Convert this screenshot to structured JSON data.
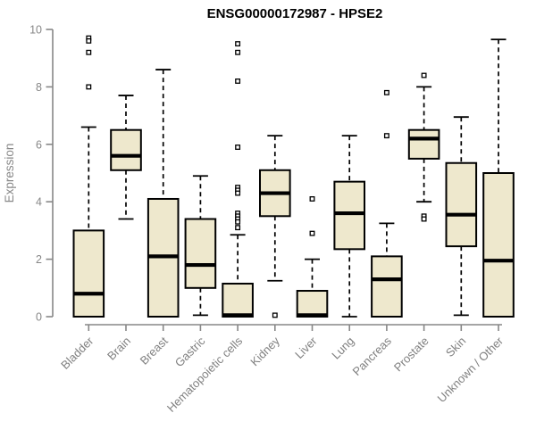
{
  "title": "ENSG00000172987 - HPSE2",
  "colors": {
    "background": "#FFFFFF",
    "box_fill": "#EEE8CD",
    "box_stroke": "#000000",
    "median": "#000000",
    "whisker": "#000000",
    "outlier_stroke": "#000000",
    "outlier_fill": "#FFFFFF",
    "axis": "#878787",
    "tick_label": "#878787",
    "category_label": "#808080",
    "title": "#000000"
  },
  "chart_data": {
    "type": "boxplot",
    "title": "ENSG00000172987 - HPSE2",
    "xlabel": "",
    "ylabel": "Expression",
    "ylim": [
      0,
      10
    ],
    "yticks": [
      0,
      2,
      4,
      6,
      8,
      10
    ],
    "grid": false,
    "legend": "none",
    "categories": [
      "Bladder",
      "Brain",
      "Breast",
      "Gastric",
      "Hematopoietic cells",
      "Kidney",
      "Liver",
      "Lung",
      "Pancreas",
      "Prostate",
      "Skin",
      "Unknown / Other"
    ],
    "series": [
      {
        "name": "Bladder",
        "whisker_low": 0,
        "q1": 0,
        "median": 0.8,
        "q3": 3.0,
        "whisker_high": 6.6,
        "outliers": [
          9.7,
          9.6,
          9.2,
          8.0
        ]
      },
      {
        "name": "Brain",
        "whisker_low": 3.4,
        "q1": 5.1,
        "median": 5.6,
        "q3": 6.5,
        "whisker_high": 7.7,
        "outliers": []
      },
      {
        "name": "Breast",
        "whisker_low": 0,
        "q1": 0,
        "median": 2.1,
        "q3": 4.1,
        "whisker_high": 8.6,
        "outliers": []
      },
      {
        "name": "Gastric",
        "whisker_low": 0.05,
        "q1": 1.0,
        "median": 1.8,
        "q3": 3.4,
        "whisker_high": 4.9,
        "outliers": []
      },
      {
        "name": "Hematopoietic cells",
        "whisker_low": 0,
        "q1": 0,
        "median": 0.05,
        "q3": 1.15,
        "whisker_high": 2.85,
        "outliers": [
          9.5,
          9.2,
          8.2,
          5.9,
          4.5,
          4.4,
          4.3,
          3.6,
          3.5,
          3.4,
          3.3,
          3.1
        ]
      },
      {
        "name": "Kidney",
        "whisker_low": 1.25,
        "q1": 3.5,
        "median": 4.3,
        "q3": 5.1,
        "whisker_high": 6.3,
        "outliers": [
          0.05
        ]
      },
      {
        "name": "Liver",
        "whisker_low": 0,
        "q1": 0,
        "median": 0.05,
        "q3": 0.9,
        "whisker_high": 2.0,
        "outliers": [
          4.1,
          2.9
        ]
      },
      {
        "name": "Lung",
        "whisker_low": 0,
        "q1": 2.35,
        "median": 3.6,
        "q3": 4.7,
        "whisker_high": 6.3,
        "outliers": []
      },
      {
        "name": "Pancreas",
        "whisker_low": 0,
        "q1": 0,
        "median": 1.3,
        "q3": 2.1,
        "whisker_high": 3.25,
        "outliers": [
          7.8,
          6.3
        ]
      },
      {
        "name": "Prostate",
        "whisker_low": 4.0,
        "q1": 5.5,
        "median": 6.2,
        "q3": 6.5,
        "whisker_high": 8.0,
        "outliers": [
          8.4,
          3.5,
          3.4
        ]
      },
      {
        "name": "Skin",
        "whisker_low": 0.05,
        "q1": 2.45,
        "median": 3.55,
        "q3": 5.35,
        "whisker_high": 6.95,
        "outliers": []
      },
      {
        "name": "Unknown / Other",
        "whisker_low": 0,
        "q1": 0,
        "median": 1.95,
        "q3": 5.0,
        "whisker_high": 9.65,
        "outliers": []
      }
    ]
  }
}
